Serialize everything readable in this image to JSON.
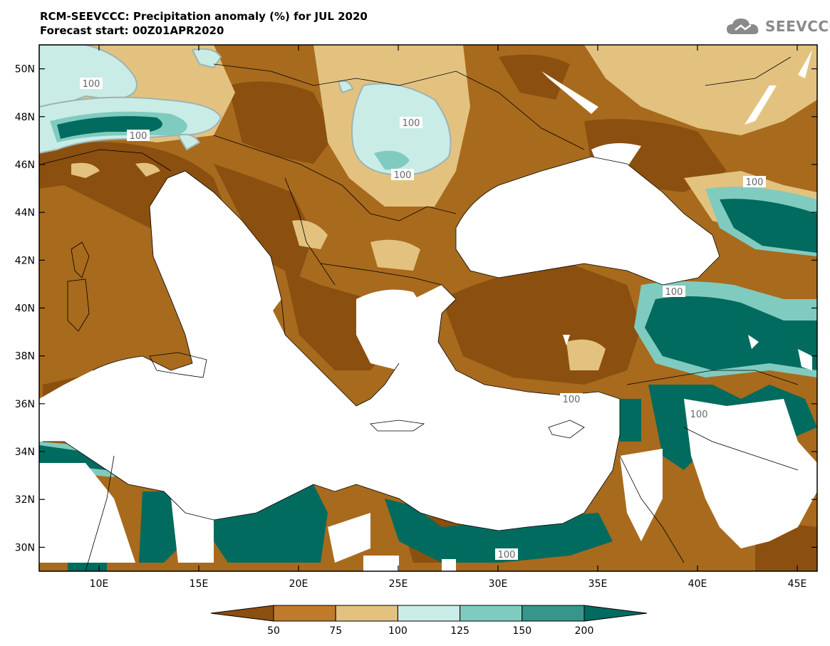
{
  "title": "RCM-SEEVCCC: Precipitation anomaly (%) for JUL 2020",
  "subtitle": "Forecast start: 00Z01APR2020",
  "logo": {
    "text": "SEEVCCC",
    "icon": "cloud-icon"
  },
  "map": {
    "lon_range": [
      7,
      46
    ],
    "lat_range": [
      29,
      51
    ],
    "lat_ticks": [
      "50N",
      "48N",
      "46N",
      "44N",
      "42N",
      "40N",
      "38N",
      "36N",
      "34N",
      "32N",
      "30N"
    ],
    "lon_ticks": [
      "10E",
      "15E",
      "20E",
      "25E",
      "30E",
      "35E",
      "40E",
      "45E"
    ],
    "contour_labels": [
      "100",
      "100",
      "100",
      "100",
      "100",
      "100",
      "100",
      "100",
      "100"
    ]
  },
  "legend": {
    "ticks": [
      "50",
      "75",
      "100",
      "125",
      "150",
      "200"
    ],
    "colors": [
      "#8b4f0f",
      "#bf7a2a",
      "#e3c280",
      "#c9ece6",
      "#80cbbf",
      "#36968a",
      "#006b5e"
    ]
  }
}
